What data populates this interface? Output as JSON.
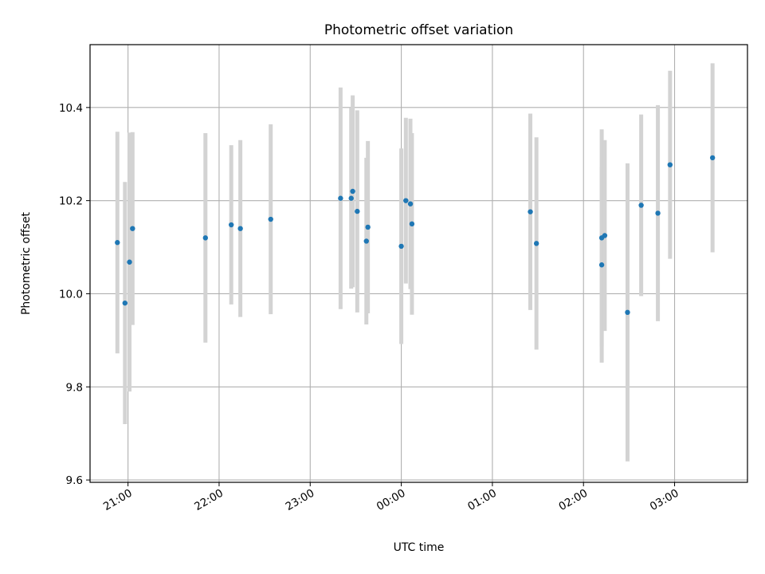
{
  "chart_data": {
    "type": "scatter",
    "title": "Photometric offset variation",
    "xlabel": "UTC time",
    "ylabel": "Photometric offset",
    "x_axis_kind": "time",
    "xlim": [
      "20:35",
      "03:48"
    ],
    "x_ticks": [
      "21:00",
      "22:00",
      "23:00",
      "00:00",
      "01:00",
      "02:00",
      "03:00"
    ],
    "ylim": [
      9.595,
      10.535
    ],
    "y_ticks": [
      "9.6",
      "9.8",
      "10.0",
      "10.2",
      "10.4"
    ],
    "grid": true,
    "point_color": "#1f77b4",
    "errorbar_color": "#d3d3d3",
    "points": [
      {
        "t": "20:53",
        "y": 10.11,
        "err": 0.238
      },
      {
        "t": "20:58",
        "y": 9.98,
        "err": 0.26
      },
      {
        "t": "21:01",
        "y": 10.068,
        "err": 0.278
      },
      {
        "t": "21:03",
        "y": 10.14,
        "err": 0.207
      },
      {
        "t": "21:51",
        "y": 10.12,
        "err": 0.225
      },
      {
        "t": "22:08",
        "y": 10.148,
        "err": 0.171
      },
      {
        "t": "22:14",
        "y": 10.14,
        "err": 0.19
      },
      {
        "t": "22:34",
        "y": 10.16,
        "err": 0.204
      },
      {
        "t": "23:20",
        "y": 10.205,
        "err": 0.238
      },
      {
        "t": "23:27",
        "y": 10.205,
        "err": 0.194
      },
      {
        "t": "23:28",
        "y": 10.22,
        "err": 0.206
      },
      {
        "t": "23:31",
        "y": 10.177,
        "err": 0.217
      },
      {
        "t": "23:37",
        "y": 10.113,
        "err": 0.179
      },
      {
        "t": "23:38",
        "y": 10.143,
        "err": 0.185
      },
      {
        "t": "00:00",
        "y": 10.102,
        "err": 0.21
      },
      {
        "t": "00:03",
        "y": 10.2,
        "err": 0.178
      },
      {
        "t": "00:06",
        "y": 10.193,
        "err": 0.183
      },
      {
        "t": "00:07",
        "y": 10.15,
        "err": 0.195
      },
      {
        "t": "01:25",
        "y": 10.176,
        "err": 0.211
      },
      {
        "t": "01:29",
        "y": 10.108,
        "err": 0.228
      },
      {
        "t": "02:12",
        "y": 10.062,
        "err": 0.21
      },
      {
        "t": "02:12",
        "y": 10.12,
        "err": 0.233
      },
      {
        "t": "02:14",
        "y": 10.125,
        "err": 0.205
      },
      {
        "t": "02:29",
        "y": 9.96,
        "err": 0.32
      },
      {
        "t": "02:38",
        "y": 10.19,
        "err": 0.195
      },
      {
        "t": "02:49",
        "y": 10.173,
        "err": 0.232
      },
      {
        "t": "02:57",
        "y": 10.277,
        "err": 0.202
      },
      {
        "t": "03:25",
        "y": 10.292,
        "err": 0.203
      }
    ]
  }
}
